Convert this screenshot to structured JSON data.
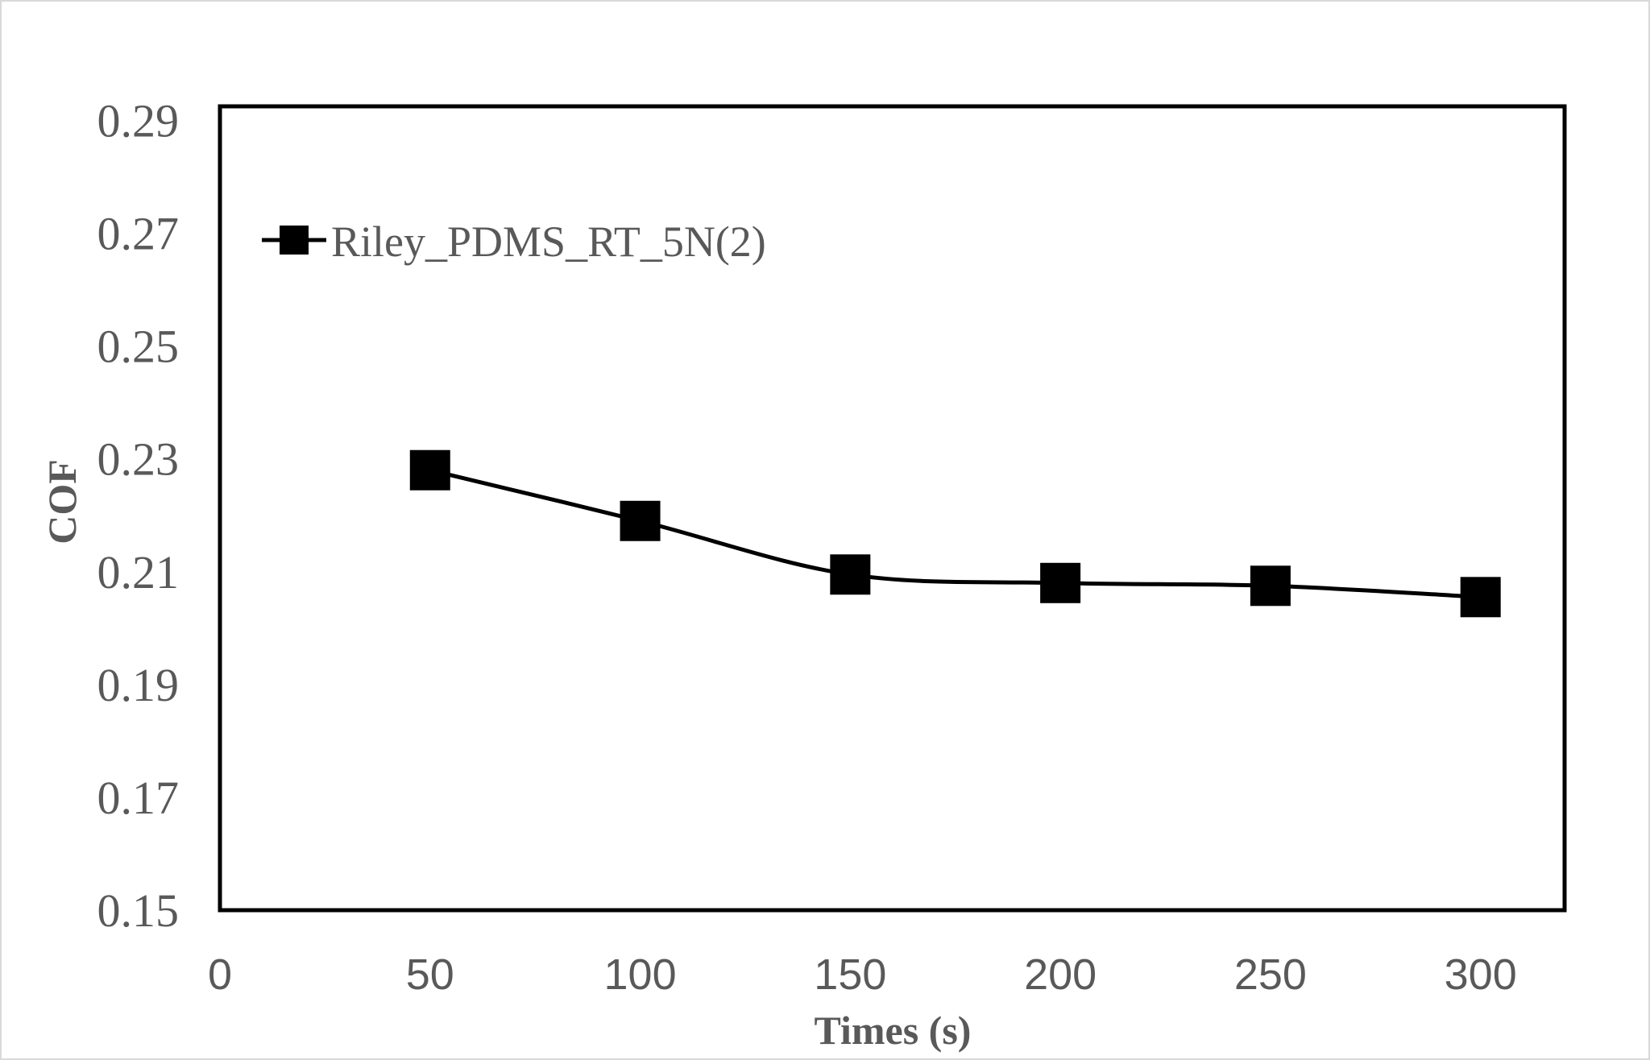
{
  "chart_data": {
    "type": "line",
    "xlabel": "Times (s)",
    "ylabel": "COF",
    "xlim": [
      0,
      320
    ],
    "ylim": [
      0.15,
      0.3
    ],
    "x_ticks": [
      "0",
      "50",
      "100",
      "150",
      "200",
      "250",
      "300"
    ],
    "y_ticks": [
      "0.15",
      "0.17",
      "0.19",
      "0.21",
      "0.23",
      "0.25",
      "0.27",
      "0.29"
    ],
    "grid": false,
    "legend_position": "top-left",
    "smoothed": true,
    "series": [
      {
        "name": "Riley_PDMS_RT_5N(2)",
        "marker": "square",
        "color": "#000000",
        "x": [
          50,
          100,
          150,
          200,
          250,
          300
        ],
        "y": [
          0.228,
          0.219,
          0.2095,
          0.208,
          0.2075,
          0.2055
        ]
      }
    ]
  }
}
